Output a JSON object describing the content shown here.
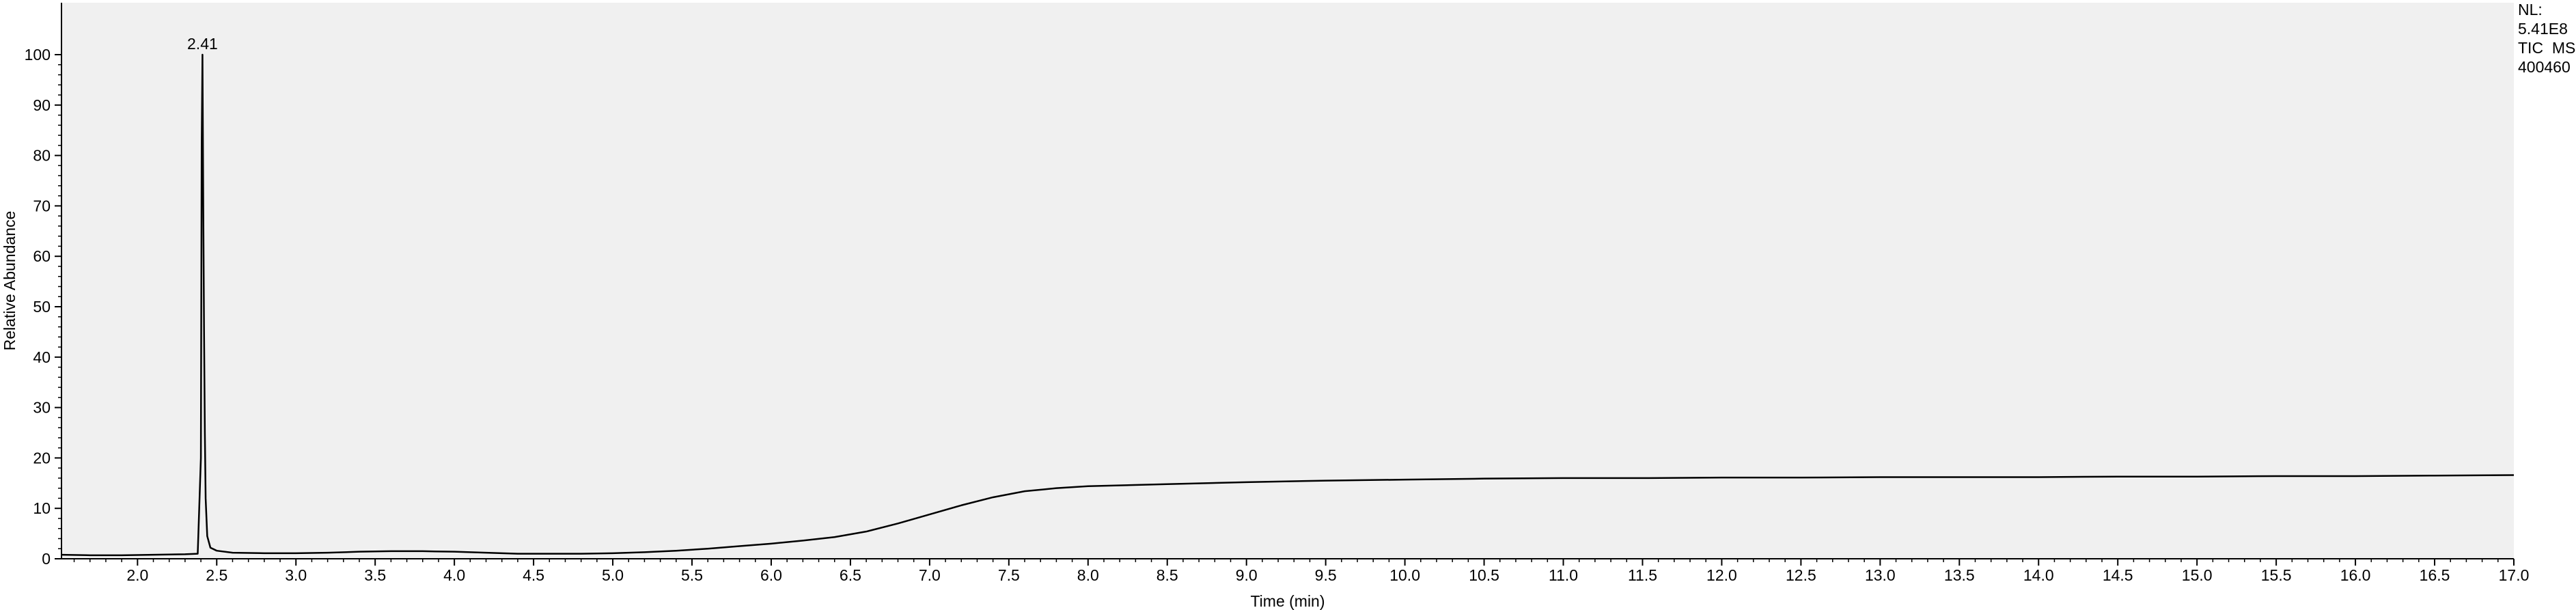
{
  "chart_data": {
    "type": "line",
    "title": "",
    "xlabel": "Time (min)",
    "ylabel": "Relative Abundance",
    "xlim": [
      1.52,
      17.0
    ],
    "ylim": [
      0,
      100
    ],
    "x_ticks": [
      "2.0",
      "2.5",
      "3.0",
      "3.5",
      "4.0",
      "4.5",
      "5.0",
      "5.5",
      "6.0",
      "6.5",
      "7.0",
      "7.5",
      "8.0",
      "8.5",
      "9.0",
      "9.5",
      "10.0",
      "10.5",
      "11.0",
      "11.5",
      "12.0",
      "12.5",
      "13.0",
      "13.5",
      "14.0",
      "14.5",
      "15.0",
      "15.5",
      "16.0",
      "16.5",
      "17.0"
    ],
    "y_ticks": [
      "0",
      "10",
      "20",
      "30",
      "40",
      "50",
      "60",
      "70",
      "80",
      "90",
      "100"
    ],
    "grid": false,
    "info": [
      "NL:",
      "5.41E8",
      "TIC  MS",
      "400460"
    ],
    "annotations": [
      {
        "label": "2.41",
        "x": 2.41,
        "y": 100
      }
    ],
    "series": [
      {
        "color": "#000000",
        "x": [
          1.52,
          1.7,
          1.9,
          2.1,
          2.3,
          2.38,
          2.4,
          2.405,
          2.41,
          2.415,
          2.42,
          2.425,
          2.43,
          2.44,
          2.46,
          2.5,
          2.6,
          2.8,
          3.0,
          3.2,
          3.4,
          3.6,
          3.8,
          4.0,
          4.2,
          4.4,
          4.6,
          4.8,
          5.0,
          5.2,
          5.4,
          5.6,
          5.8,
          6.0,
          6.2,
          6.4,
          6.6,
          6.8,
          7.0,
          7.2,
          7.4,
          7.6,
          7.8,
          8.0,
          8.5,
          9.0,
          9.5,
          10.0,
          10.5,
          11.0,
          11.5,
          12.0,
          12.5,
          13.0,
          13.5,
          14.0,
          14.5,
          15.0,
          15.5,
          16.0,
          16.5,
          17.0
        ],
        "y": [
          0.8,
          0.7,
          0.7,
          0.8,
          0.9,
          1.0,
          20.0,
          82.0,
          100.0,
          70.0,
          45.0,
          25.0,
          12.0,
          4.5,
          2.2,
          1.6,
          1.2,
          1.1,
          1.1,
          1.2,
          1.4,
          1.5,
          1.5,
          1.4,
          1.2,
          1.0,
          1.0,
          1.0,
          1.1,
          1.3,
          1.6,
          2.0,
          2.5,
          3.0,
          3.6,
          4.3,
          5.4,
          7.0,
          8.8,
          10.6,
          12.2,
          13.4,
          14.0,
          14.4,
          14.8,
          15.2,
          15.5,
          15.7,
          15.9,
          16.0,
          16.0,
          16.1,
          16.1,
          16.2,
          16.2,
          16.2,
          16.3,
          16.3,
          16.4,
          16.4,
          16.5,
          16.6
        ]
      }
    ]
  }
}
